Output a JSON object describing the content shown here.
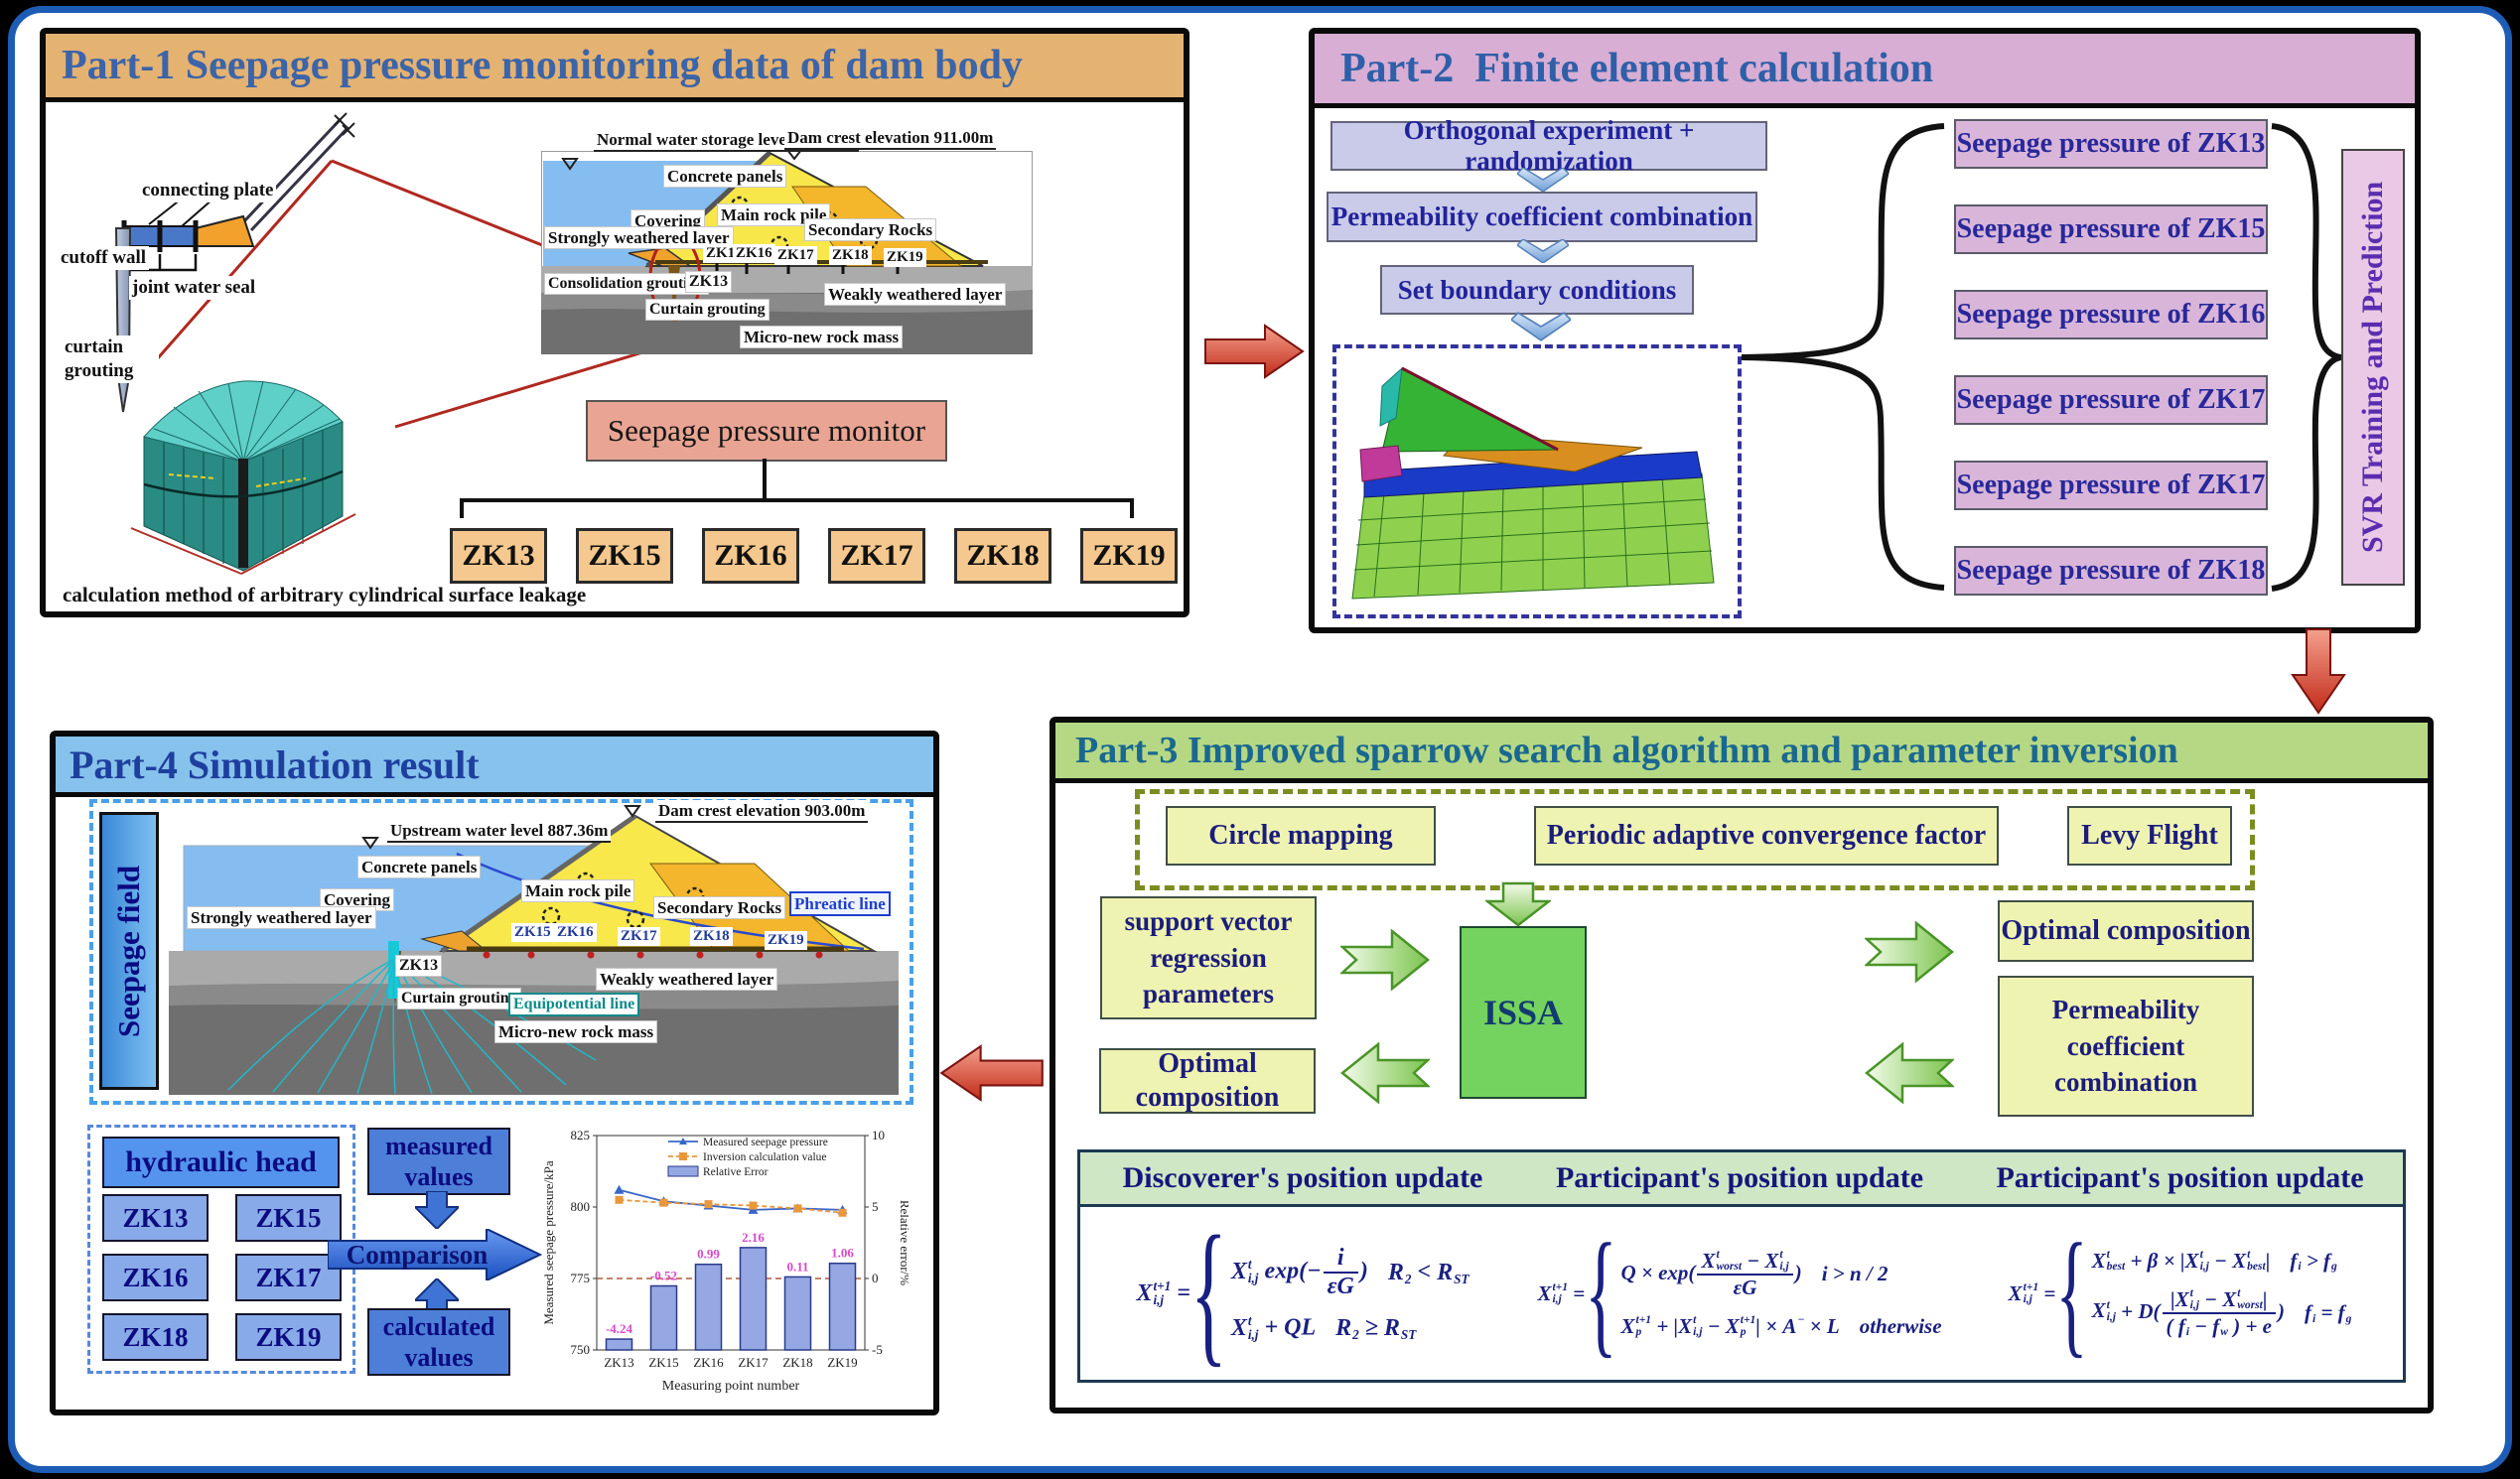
{
  "palette": {
    "part1_header": "#e4b271",
    "part2_header": "#d8aed4",
    "part3_header": "#b6d884",
    "part4_header": "#86c2ec",
    "step_box": "#c9cbe8",
    "output_box": "#d9b6d9",
    "green_box": "#eef3b2",
    "issa_green": "#74d25e",
    "blue_box": "#4d7fd8",
    "sensor_box": "#f4c88e",
    "monitor_box": "#e9a493",
    "red_arrow": "#c22b1a"
  },
  "part1": {
    "title": "Part-1 Seepage pressure monitoring data of dam body",
    "instrument": {
      "connecting_plate": "connecting plate",
      "cutoff_wall": "cutoff wall",
      "joint_water_seal": "joint water seal",
      "curtain_grouting": "curtain grouting"
    },
    "cylinder_caption": "calculation method of arbitrary cylindrical surface leakage",
    "dam": {
      "water_level": "Normal water storage level 903.00m",
      "crest": "Dam crest elevation 911.00m",
      "concrete_panels": "Concrete panels",
      "covering": "Covering",
      "strongly_weathered": "Strongly weathered layer",
      "main_rock_pile": "Main rock pile",
      "secondary_rocks": "Secondary Rocks",
      "consolidation_grouting": "Consolidation grouting",
      "zk13": "ZK13",
      "curtain_grouting": "Curtain grouting",
      "weakly_weathered": "Weakly weathered layer",
      "micro_new": "Micro-new rock mass",
      "piezometers": [
        "ZK15",
        "ZK16",
        "ZK17",
        "ZK18",
        "ZK19"
      ]
    },
    "monitor_box": "Seepage pressure monitor",
    "sensors": [
      "ZK13",
      "ZK15",
      "ZK16",
      "ZK17",
      "ZK18",
      "ZK19"
    ]
  },
  "part2": {
    "title": "Part-2  Finite element calculation",
    "steps": [
      "Orthogonal experiment + randomization",
      "Permeability coefficient combination",
      "Set boundary conditions"
    ],
    "outputs": [
      "Seepage pressure of ZK13",
      "Seepage pressure of ZK15",
      "Seepage pressure of ZK16",
      "Seepage pressure of ZK17",
      "Seepage pressure of ZK17",
      "Seepage pressure of ZK18"
    ],
    "svr_label": "SVR Training and Prediction"
  },
  "part3": {
    "title": "Part-3 Improved sparrow search algorithm and parameter inversion",
    "improvements": [
      "Circle mapping",
      "Periodic adaptive convergence factor",
      "Levy Flight"
    ],
    "left_input": "support vector regression parameters",
    "left_output": "Optimal composition",
    "core": "ISSA",
    "right_output1": "Optimal composition",
    "right_output2": "Permeability coefficient combination",
    "table_headers": [
      "Discoverer's position update",
      "Participant's position update",
      "Participant's position update"
    ],
    "formulas": [
      {
        "lhs": [
          [
            "ss",
            "X",
            "t+1",
            "i,j"
          ],
          [
            "t",
            " = "
          ]
        ],
        "rows": [
          {
            "e": [
              [
                "ss",
                "X",
                "t",
                "i,j"
              ],
              [
                "t",
                " exp(−"
              ],
              [
                "fr",
                [
                  [
                    "t",
                    "i"
                  ]
                ],
                [
                  [
                    "t",
                    "εG"
                  ]
                ]
              ],
              [
                "t",
                ")"
              ]
            ],
            "c": [
              [
                "ss",
                "R",
                "",
                "2"
              ],
              [
                "t",
                " < "
              ],
              [
                "ss",
                "R",
                "",
                "ST"
              ]
            ]
          },
          {
            "e": [
              [
                "ss",
                "X",
                "t",
                "i,j"
              ],
              [
                "t",
                " + QL"
              ]
            ],
            "c": [
              [
                "ss",
                "R",
                "",
                "2"
              ],
              [
                "t",
                " ≥ "
              ],
              [
                "ss",
                "R",
                "",
                "ST"
              ]
            ]
          }
        ]
      },
      {
        "lhs": [
          [
            "ss",
            "X",
            "t+1",
            "i,j"
          ],
          [
            "t",
            " = "
          ]
        ],
        "rows": [
          {
            "e": [
              [
                "t",
                "Q × exp("
              ],
              [
                "fr",
                [
                  [
                    "ss",
                    "X",
                    "t",
                    "worst"
                  ],
                  [
                    "t",
                    " − "
                  ],
                  [
                    "ss",
                    "X",
                    "t",
                    "i,j"
                  ]
                ],
                [
                  [
                    "t",
                    "εG"
                  ]
                ]
              ],
              [
                "t",
                ")"
              ]
            ],
            "c": [
              [
                "t",
                "i > n / 2"
              ]
            ]
          },
          {
            "e": [
              [
                "ss",
                "X",
                "t+1",
                "p"
              ],
              [
                "t",
                " + |"
              ],
              [
                "ss",
                "X",
                "t",
                "i,j"
              ],
              [
                "t",
                " − "
              ],
              [
                "ss",
                "X",
                "t+1",
                "p"
              ],
              [
                "t",
                "| × "
              ],
              [
                "ss",
                "A",
                "−",
                ""
              ],
              [
                "t",
                " × L"
              ]
            ],
            "c": [
              [
                "t",
                "otherwise"
              ]
            ]
          }
        ]
      },
      {
        "lhs": [
          [
            "ss",
            "X",
            "t+1",
            "i,j"
          ],
          [
            "t",
            " = "
          ]
        ],
        "rows": [
          {
            "e": [
              [
                "ss",
                "X",
                "t",
                "best"
              ],
              [
                "t",
                " + β × |"
              ],
              [
                "ss",
                "X",
                "t",
                "i,j"
              ],
              [
                "t",
                " − "
              ],
              [
                "ss",
                "X",
                "t",
                "best"
              ],
              [
                "t",
                "|"
              ]
            ],
            "c": [
              [
                "ss",
                "f",
                "",
                "i"
              ],
              [
                "t",
                " > "
              ],
              [
                "ss",
                "f",
                "",
                "g"
              ]
            ]
          },
          {
            "e": [
              [
                "ss",
                "X",
                "t",
                "i,j"
              ],
              [
                "t",
                " + D("
              ],
              [
                "fr",
                [
                  [
                    "t",
                    "|"
                  ],
                  [
                    "ss",
                    "X",
                    "t",
                    "i,j"
                  ],
                  [
                    "t",
                    " − "
                  ],
                  [
                    "ss",
                    "X",
                    "t",
                    "worst"
                  ],
                  [
                    "t",
                    "|"
                  ]
                ],
                [
                  [
                    "t",
                    "( "
                  ],
                  [
                    "ss",
                    "f",
                    "",
                    "i"
                  ],
                  [
                    "t",
                    " − "
                  ],
                  [
                    "ss",
                    "f",
                    "",
                    "w"
                  ],
                  [
                    "t",
                    " ) + e"
                  ]
                ]
              ],
              [
                "t",
                ")"
              ]
            ],
            "c": [
              [
                "ss",
                "f",
                "",
                "i"
              ],
              [
                "t",
                " = "
              ],
              [
                "ss",
                "f",
                "",
                "g"
              ]
            ]
          }
        ]
      }
    ]
  },
  "part4": {
    "title": "Part-4 Simulation result",
    "field_label": "Seepage field",
    "dam": {
      "upstream": "Upstream water level 887.36m",
      "crest": "Dam crest elevation 903.00m",
      "concrete_panels": "Concrete panels",
      "covering": "Covering",
      "strongly_weathered": "Strongly weathered layer",
      "main_rock_pile": "Main rock pile",
      "secondary_rocks": "Secondary Rocks",
      "phreatic": "Phreatic line",
      "zk13": "ZK13",
      "curtain_grouting": "Curtain grouting",
      "equipotential": "Equipotential line",
      "weakly_weathered": "Weakly weathered layer",
      "micro_new": "Micro-new rock mass",
      "piezometers": [
        "ZK15",
        "ZK16",
        "ZK17",
        "ZK18",
        "ZK19"
      ]
    },
    "hydraulic_title": "hydraulic head",
    "points": [
      "ZK13",
      "ZK15",
      "ZK16",
      "ZK17",
      "ZK18",
      "ZK19"
    ],
    "measured": "measured values",
    "calculated": "calculated values",
    "comparison": "Comparison"
  },
  "chart_data": {
    "type": "combo",
    "categories": [
      "ZK13",
      "ZK15",
      "ZK16",
      "ZK17",
      "ZK18",
      "ZK19"
    ],
    "series": [
      {
        "name": "Measured seepage pressure",
        "type": "line",
        "marker": "triangle",
        "color": "#3a66c8",
        "axis": "left",
        "values": [
          806,
          802,
          800.5,
          799,
          799.5,
          799
        ]
      },
      {
        "name": "Inversion calculation value",
        "type": "line",
        "marker": "square",
        "color": "#e8973a",
        "axis": "left",
        "values": [
          802.5,
          801.5,
          801,
          800.5,
          799.5,
          798
        ]
      },
      {
        "name": "Relative Error",
        "type": "bar",
        "color": "#96a8e4",
        "axis": "right",
        "values": [
          -4.24,
          -0.52,
          0.99,
          2.16,
          0.11,
          1.06
        ]
      }
    ],
    "bar_labels": [
      "-4.24",
      "-0.52",
      "0.99",
      "2.16",
      "0.11",
      "1.06"
    ],
    "bar_label_color": "#d849c8",
    "left_axis": {
      "label": "Measured seepage pressure/kPa",
      "ticks": [
        750,
        775,
        800,
        825
      ],
      "range": [
        750,
        825
      ]
    },
    "right_axis": {
      "label": "Relative error/%",
      "ticks": [
        -5,
        0,
        5,
        10
      ],
      "range": [
        -5,
        10
      ]
    },
    "xlabel": "Measuring point number",
    "zero_line": 0,
    "legend_position": "top"
  }
}
